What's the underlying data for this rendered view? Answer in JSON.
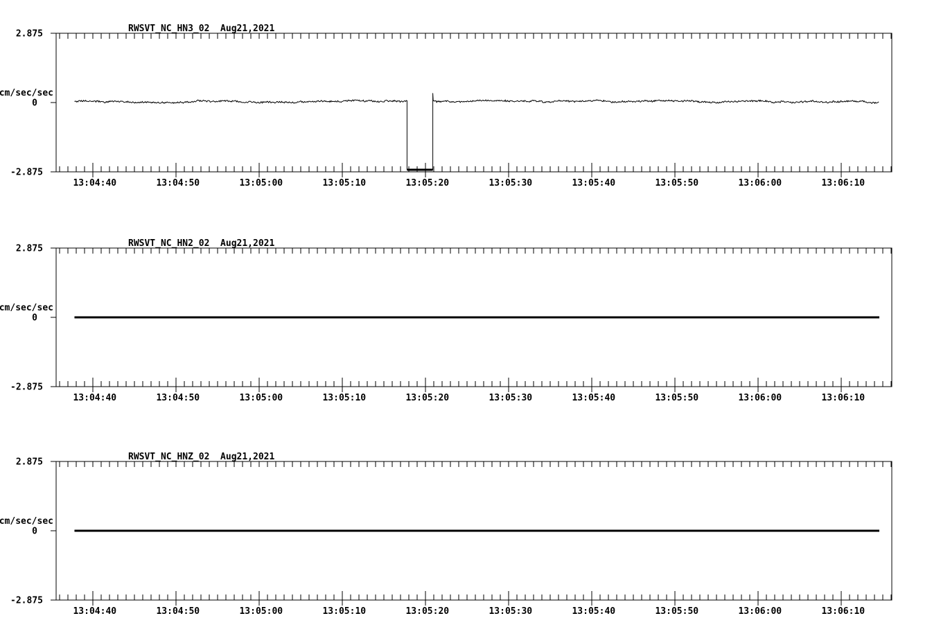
{
  "page": {
    "background_color": "#ffffff",
    "foreground_color": "#000000",
    "description": "Three stacked seismogram strip charts (strong-motion acceleration traces) for station RWSVT, network NC, location 02"
  },
  "chart_data": [
    {
      "type": "line",
      "title": "RWSVT_NC_HN3_02",
      "date_label": "Aug21,2021",
      "ylabel": "cm/sec/sec",
      "ylim": [
        -2.875,
        2.875
      ],
      "y_tick_values": [
        2.875,
        0,
        -2.875
      ],
      "y_tick_labels": [
        "2.875",
        "0",
        "-2.875"
      ],
      "x_axis_seconds_after_13_04_00": {
        "start": 35.6,
        "end": 136.1
      },
      "x_major_tick_seconds": [
        40,
        50,
        60,
        70,
        80,
        90,
        100,
        110,
        120,
        130
      ],
      "x_labels": [
        "13:04:40",
        "13:04:50",
        "13:05:00",
        "13:05:10",
        "13:05:20",
        "13:05:30",
        "13:05:40",
        "13:05:50",
        "13:06:00",
        "13:06:10"
      ],
      "x_minor_tick_step_seconds": 1,
      "grid": false,
      "legend": "none",
      "series_segments": [
        {
          "type": "noise",
          "t0": 37.8,
          "t1": 77.8,
          "mean": 0.04,
          "amp": 0.07
        },
        {
          "type": "flat",
          "t0": 77.8,
          "t1": 80.9,
          "value": -2.79,
          "thick": true
        },
        {
          "type": "point",
          "t": 80.9,
          "value": 0.38
        },
        {
          "type": "noise",
          "t0": 80.95,
          "t1": 134.6,
          "mean": 0.04,
          "amp": 0.07
        }
      ],
      "annotation": "signal dropout to -2.79 cm/sec/sec between ~13:05:18 and ~13:05:21 with recovery spike to +0.38"
    },
    {
      "type": "line",
      "title": "RWSVT_NC_HN2_02",
      "date_label": "Aug21,2021",
      "ylabel": "cm/sec/sec",
      "ylim": [
        -2.875,
        2.875
      ],
      "y_tick_values": [
        2.875,
        0,
        -2.875
      ],
      "y_tick_labels": [
        "2.875",
        "0",
        "-2.875"
      ],
      "x_axis_seconds_after_13_04_00": {
        "start": 35.6,
        "end": 136.1
      },
      "x_major_tick_seconds": [
        40,
        50,
        60,
        70,
        80,
        90,
        100,
        110,
        120,
        130
      ],
      "x_labels": [
        "13:04:40",
        "13:04:50",
        "13:05:00",
        "13:05:10",
        "13:05:20",
        "13:05:30",
        "13:05:40",
        "13:05:50",
        "13:06:00",
        "13:06:10"
      ],
      "x_minor_tick_step_seconds": 1,
      "grid": false,
      "legend": "none",
      "series_segments": [
        {
          "type": "flat",
          "t0": 37.8,
          "t1": 134.6,
          "value": 0,
          "thick": true
        }
      ],
      "annotation": "flat trace at 0 for the whole window"
    },
    {
      "type": "line",
      "title": "RWSVT_NC_HNZ_02",
      "date_label": "Aug21,2021",
      "ylabel": "cm/sec/sec",
      "ylim": [
        -2.875,
        2.875
      ],
      "y_tick_values": [
        2.875,
        0,
        -2.875
      ],
      "y_tick_labels": [
        "2.875",
        "0",
        "-2.875"
      ],
      "x_axis_seconds_after_13_04_00": {
        "start": 35.6,
        "end": 136.1
      },
      "x_major_tick_seconds": [
        40,
        50,
        60,
        70,
        80,
        90,
        100,
        110,
        120,
        130
      ],
      "x_labels": [
        "13:04:40",
        "13:04:50",
        "13:05:00",
        "13:05:10",
        "13:05:20",
        "13:05:30",
        "13:05:40",
        "13:05:50",
        "13:06:00",
        "13:06:10"
      ],
      "x_minor_tick_step_seconds": 1,
      "grid": false,
      "legend": "none",
      "series_segments": [
        {
          "type": "flat",
          "t0": 37.8,
          "t1": 134.6,
          "value": 0,
          "thick": true
        }
      ],
      "annotation": "flat trace at 0 for the whole window"
    }
  ]
}
